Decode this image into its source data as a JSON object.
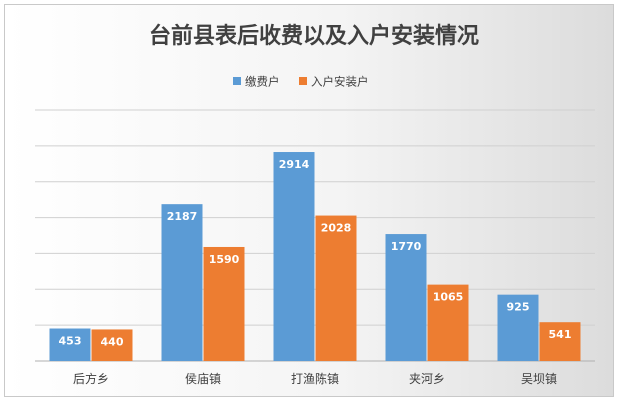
{
  "chart_data": {
    "type": "bar",
    "title": "台前县表后收费以及入户安装情况",
    "categories": [
      "后方乡",
      "侯庙镇",
      "打渔陈镇",
      "夹河乡",
      "吴坝镇"
    ],
    "series": [
      {
        "name": "缴费户",
        "color": "#5b9bd5",
        "values": [
          453,
          2187,
          2914,
          1770,
          925
        ]
      },
      {
        "name": "入户安装户",
        "color": "#ed7d31",
        "values": [
          440,
          1590,
          2028,
          1065,
          541
        ]
      }
    ],
    "ylim": [
      0,
      3500
    ],
    "grid": true,
    "legend": "top-center"
  }
}
